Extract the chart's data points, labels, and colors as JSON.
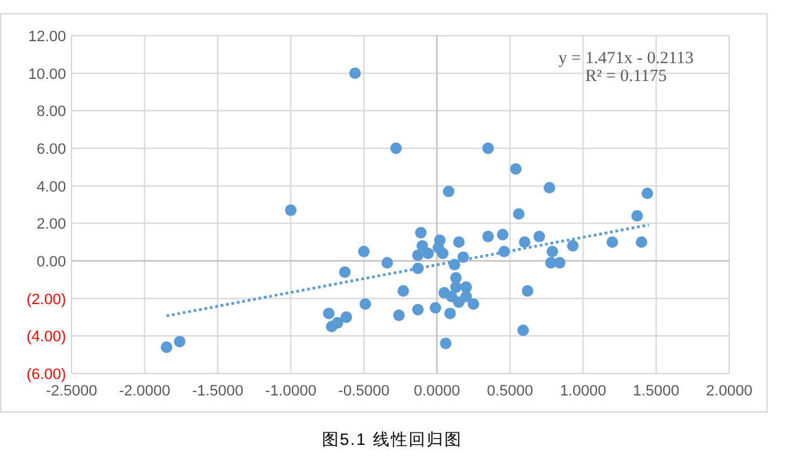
{
  "chart_data": {
    "type": "scatter",
    "annotations": [
      "y = 1.471x - 0.2113",
      "R² = 0.1175",
      "图5.1 线性回归图"
    ],
    "xlim": [
      -2.5,
      2.0
    ],
    "xticks": [
      {
        "value": -2.5,
        "label": "-2.5000"
      },
      {
        "value": -2.0,
        "label": "-2.0000"
      },
      {
        "value": -1.5,
        "label": "-1.5000"
      },
      {
        "value": -1.0,
        "label": "-1.0000"
      },
      {
        "value": -0.5,
        "label": "-0.5000"
      },
      {
        "value": 0,
        "label": "0.0000"
      },
      {
        "value": 0.5,
        "label": "0.5000"
      },
      {
        "value": 1.0,
        "label": "1.0000"
      },
      {
        "value": 1.5,
        "label": "1.5000"
      },
      {
        "value": 2.0,
        "label": "2.0000"
      }
    ],
    "ylim": [
      -6,
      12
    ],
    "yticks": [
      {
        "value": -6,
        "label": "(6.00)"
      },
      {
        "value": -4,
        "label": "(4.00)"
      },
      {
        "value": -2,
        "label": "(2.00)"
      },
      {
        "value": 0,
        "label": "0.00"
      },
      {
        "value": 2,
        "label": "2.00"
      },
      {
        "value": 4,
        "label": "4.00"
      },
      {
        "value": 6,
        "label": "6.00"
      },
      {
        "value": 8,
        "label": "8.00"
      },
      {
        "value": 10,
        "label": "10.00"
      },
      {
        "value": 12,
        "label": "12.00"
      }
    ],
    "grid": true,
    "series": [
      {
        "color": "#5b9bd5",
        "marker": "circle",
        "x": [
          -0.56,
          -0.28,
          -1.0,
          0.35,
          0.08,
          0.54,
          0.56,
          0.77,
          1.37,
          1.44,
          -1.85,
          -1.76,
          -0.74,
          -0.72,
          -0.68,
          -0.62,
          -0.63,
          -0.5,
          -0.49,
          -0.34,
          -0.23,
          -0.26,
          -0.11,
          -0.1,
          -0.06,
          -0.13,
          -0.13,
          -0.13,
          -0.01,
          0.02,
          0.01,
          0.04,
          0.12,
          0.15,
          0.18,
          0.13,
          0.13,
          0.05,
          0.1,
          0.15,
          0.2,
          0.2,
          0.25,
          0.09,
          0.06,
          0.35,
          0.45,
          0.46,
          0.6,
          0.7,
          0.79,
          0.78,
          0.84,
          0.93,
          1.2,
          1.4,
          0.62,
          0.59
        ],
        "values": [
          10.0,
          6.0,
          2.7,
          6.0,
          3.7,
          4.9,
          2.5,
          3.9,
          2.4,
          3.6,
          -4.6,
          -4.3,
          -2.8,
          -3.5,
          -3.3,
          -3.0,
          -0.6,
          0.5,
          -2.3,
          -0.1,
          -1.6,
          -2.9,
          1.5,
          0.8,
          0.4,
          0.3,
          -0.4,
          -2.6,
          -2.5,
          1.1,
          0.7,
          0.4,
          -0.2,
          1.0,
          0.2,
          -0.9,
          -1.4,
          -1.7,
          -1.9,
          -2.2,
          -1.4,
          -1.9,
          -2.3,
          -2.8,
          -4.4,
          1.3,
          1.4,
          0.5,
          1.0,
          1.3,
          0.5,
          -0.1,
          -0.1,
          0.8,
          1.0,
          1.0,
          -1.6,
          -3.7
        ]
      },
      {
        "type": "line",
        "color": "#5b9bd5",
        "line_style": "dotted",
        "marker": "none",
        "x": [
          -1.85,
          1.45
        ],
        "values": [
          -2.93,
          1.92
        ]
      }
    ]
  }
}
